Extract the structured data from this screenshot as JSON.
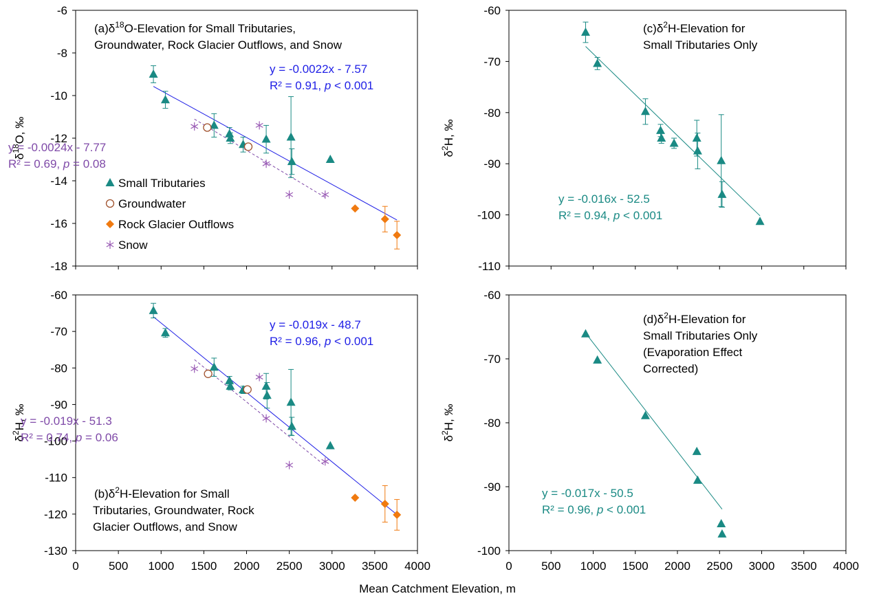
{
  "figure": {
    "xlabel": "Mean Catchment Elevation, m",
    "colors": {
      "tributaries": "#1a8a84",
      "groundwater": "#a0522d",
      "rock_glacier": "#f07a10",
      "snow": "#9a5bb5",
      "fit_all": "#1f1fe6",
      "fit_gw_snow": "#7f4aa8",
      "fit_trib": "#1a8a84",
      "error_bar_rg": "#f07a10"
    }
  },
  "chart_data": [
    {
      "id": "a",
      "type": "scatter",
      "title_prefix": "(a)",
      "title_lines": [
        "δ18O-Elevation for Small Tributaries,",
        "Groundwater, Rock Glacier Outflows, and Snow"
      ],
      "ylabel": "δ18O, ‰",
      "xlim": [
        0,
        4000
      ],
      "ylim": [
        -18,
        -6
      ],
      "xticks": [
        0,
        500,
        1000,
        1500,
        2000,
        2500,
        3000,
        3500,
        4000
      ],
      "yticks": [
        -18,
        -16,
        -14,
        -12,
        -10,
        -8,
        -6
      ],
      "show_xtick_labels": false,
      "series": [
        {
          "name": "Small Tributaries",
          "marker": "triangle",
          "color": "#1a8a84",
          "points": [
            [
              910,
              -9.0,
              0.4
            ],
            [
              1050,
              -10.2,
              0.4
            ],
            [
              1620,
              -11.4,
              0.55
            ],
            [
              1800,
              -11.8,
              0.3
            ],
            [
              1810,
              -12.0,
              0.25
            ],
            [
              1960,
              -12.3,
              0.35
            ],
            [
              2230,
              -12.05,
              0.65
            ],
            [
              2520,
              -11.95,
              1.9
            ],
            [
              2530,
              -13.1,
              0.6
            ],
            [
              2980,
              -13.0,
              0
            ]
          ]
        },
        {
          "name": "Groundwater",
          "marker": "circle-open",
          "color": "#a0522d",
          "points": [
            [
              1540,
              -11.5,
              0
            ],
            [
              2020,
              -12.4,
              0
            ]
          ]
        },
        {
          "name": "Rock Glacier Outflows",
          "marker": "diamond",
          "color": "#f07a10",
          "points": [
            [
              3270,
              -15.3,
              0
            ],
            [
              3620,
              -15.8,
              0.6
            ],
            [
              3760,
              -16.55,
              0.65
            ]
          ]
        },
        {
          "name": "Snow",
          "marker": "asterisk",
          "color": "#9a5bb5",
          "points": [
            [
              1390,
              -11.45,
              0
            ],
            [
              2150,
              -11.4,
              0
            ],
            [
              2230,
              -13.2,
              0
            ],
            [
              2500,
              -14.65,
              0
            ],
            [
              2920,
              -14.65,
              0
            ]
          ]
        }
      ],
      "fits": [
        {
          "slope": -0.0022,
          "intercept": -7.57,
          "x_range": [
            910,
            3760
          ],
          "color": "#1f1fe6",
          "dashed": false
        },
        {
          "slope": -0.0024,
          "intercept": -7.77,
          "x_range": [
            1390,
            2920
          ],
          "color": "#7f4aa8",
          "dashed": true
        }
      ],
      "annotations": [
        {
          "eq": "y = -0.0022x - 7.57",
          "stat": "R² = 0.91, ",
          "p_label": "p",
          "p_rest": " < 0.001",
          "color": "#1f1fe6"
        },
        {
          "eq": "y = -0.0024x - 7.77",
          "stat": "R² = 0.69, ",
          "p_label": "p",
          "p_rest": " = 0.08",
          "color": "#7f4aa8"
        }
      ],
      "legend": {
        "placement": "left",
        "entries": [
          "Small Tributaries",
          "Groundwater",
          "Rock Glacier Outflows",
          "Snow"
        ]
      }
    },
    {
      "id": "b",
      "type": "scatter",
      "title_prefix": "(b)",
      "title_lines": [
        "δ2H-Elevation for Small",
        "Tributaries, Groundwater, Rock",
        "Glacier Outflows, and Snow"
      ],
      "ylabel": "δ2H, ‰",
      "xlim": [
        0,
        4000
      ],
      "ylim": [
        -130,
        -60
      ],
      "xticks": [
        0,
        500,
        1000,
        1500,
        2000,
        2500,
        3000,
        3500,
        4000
      ],
      "yticks": [
        -130,
        -120,
        -110,
        -100,
        -90,
        -80,
        -70,
        -60
      ],
      "show_xtick_labels": true,
      "series": [
        {
          "name": "Small Tributaries",
          "marker": "triangle",
          "color": "#1a8a84",
          "points": [
            [
              910,
              -64.3,
              2.0
            ],
            [
              1050,
              -70.4,
              1.2
            ],
            [
              1620,
              -79.8,
              2.5
            ],
            [
              1800,
              -83.5,
              1.2
            ],
            [
              1810,
              -85.0,
              1.0
            ],
            [
              1960,
              -86.0,
              1.0
            ],
            [
              2230,
              -85.0,
              3.5
            ],
            [
              2240,
              -87.5,
              3.5
            ],
            [
              2520,
              -89.4,
              9.0
            ],
            [
              2530,
              -96.0,
              2.5
            ],
            [
              2980,
              -101.3,
              0
            ]
          ]
        },
        {
          "name": "Groundwater",
          "marker": "circle-open",
          "color": "#a0522d",
          "points": [
            [
              1550,
              -81.6,
              0
            ],
            [
              2010,
              -85.9,
              0
            ]
          ]
        },
        {
          "name": "Rock Glacier Outflows",
          "marker": "diamond",
          "color": "#f07a10",
          "points": [
            [
              3270,
              -115.5,
              0
            ],
            [
              3620,
              -117.2,
              5.0
            ],
            [
              3760,
              -120.2,
              4.2
            ]
          ]
        },
        {
          "name": "Snow",
          "marker": "asterisk",
          "color": "#9a5bb5",
          "points": [
            [
              1390,
              -80.2,
              0
            ],
            [
              2150,
              -82.5,
              0
            ],
            [
              2230,
              -93.8,
              0
            ],
            [
              2500,
              -106.6,
              0
            ],
            [
              2920,
              -105.6,
              0
            ]
          ]
        }
      ],
      "fits": [
        {
          "slope": -0.019,
          "intercept": -48.7,
          "x_range": [
            910,
            3760
          ],
          "color": "#1f1fe6",
          "dashed": false
        },
        {
          "slope": -0.019,
          "intercept": -51.3,
          "x_range": [
            1390,
            2920
          ],
          "color": "#7f4aa8",
          "dashed": true
        }
      ],
      "annotations": [
        {
          "eq": "y = -0.019x - 48.7",
          "stat": "R² = 0.96, ",
          "p_label": "p",
          "p_rest": " < 0.001",
          "color": "#1f1fe6"
        },
        {
          "eq": "y = -0.019x - 51.3",
          "stat": "R² = 0.74, ",
          "p_label": "p",
          "p_rest": " = 0.06",
          "color": "#7f4aa8"
        }
      ]
    },
    {
      "id": "c",
      "type": "scatter",
      "title_prefix": "(c)",
      "title_lines": [
        "δ2H-Elevation for",
        "Small Tributaries Only"
      ],
      "ylabel": "δ2H, ‰",
      "xlim": [
        0,
        4000
      ],
      "ylim": [
        -110,
        -60
      ],
      "xticks": [
        0,
        500,
        1000,
        1500,
        2000,
        2500,
        3000,
        3500,
        4000
      ],
      "yticks": [
        -110,
        -100,
        -90,
        -80,
        -70,
        -60
      ],
      "show_xtick_labels": false,
      "series": [
        {
          "name": "Small Tributaries",
          "marker": "triangle",
          "color": "#1a8a84",
          "points": [
            [
              910,
              -64.3,
              2.0
            ],
            [
              1050,
              -70.4,
              1.2
            ],
            [
              1620,
              -79.8,
              2.5
            ],
            [
              1800,
              -83.5,
              1.2
            ],
            [
              1810,
              -85.0,
              1.0
            ],
            [
              1960,
              -86.0,
              1.0
            ],
            [
              2230,
              -85.0,
              3.5
            ],
            [
              2240,
              -87.5,
              3.5
            ],
            [
              2520,
              -89.4,
              9.0
            ],
            [
              2530,
              -96.0,
              2.5
            ],
            [
              2980,
              -101.3,
              0
            ]
          ]
        }
      ],
      "fits": [
        {
          "slope": -0.016,
          "intercept": -52.5,
          "x_range": [
            910,
            2980
          ],
          "color": "#1a8a84",
          "dashed": false
        }
      ],
      "annotations": [
        {
          "eq": "y = -0.016x - 52.5",
          "stat": "R² = 0.94, ",
          "p_label": "p",
          "p_rest": " < 0.001",
          "color": "#1a8a84"
        }
      ]
    },
    {
      "id": "d",
      "type": "scatter",
      "title_prefix": "(d)",
      "title_lines": [
        "δ2H-Elevation for",
        "Small Tributaries Only",
        "(Evaporation Effect",
        "Corrected)"
      ],
      "ylabel": "δ2H, ‰",
      "xlim": [
        0,
        4000
      ],
      "ylim": [
        -100,
        -60
      ],
      "xticks": [
        0,
        500,
        1000,
        1500,
        2000,
        2500,
        3000,
        3500,
        4000
      ],
      "yticks": [
        -100,
        -90,
        -80,
        -70,
        -60
      ],
      "show_xtick_labels": true,
      "series": [
        {
          "name": "Small Tributaries",
          "marker": "triangle",
          "color": "#1a8a84",
          "points": [
            [
              910,
              -66.1,
              0
            ],
            [
              1050,
              -70.2,
              0
            ],
            [
              1620,
              -78.9,
              0
            ],
            [
              2230,
              -84.5,
              0
            ],
            [
              2240,
              -89.0,
              0
            ],
            [
              2520,
              -95.8,
              0
            ],
            [
              2530,
              -97.4,
              0
            ]
          ]
        }
      ],
      "fits": [
        {
          "slope": -0.017,
          "intercept": -50.5,
          "x_range": [
            910,
            2530
          ],
          "color": "#1a8a84",
          "dashed": false
        }
      ],
      "annotations": [
        {
          "eq": "y = -0.017x - 50.5",
          "stat": "R² = 0.96, ",
          "p_label": "p",
          "p_rest": " < 0.001",
          "color": "#1a8a84"
        }
      ]
    }
  ]
}
